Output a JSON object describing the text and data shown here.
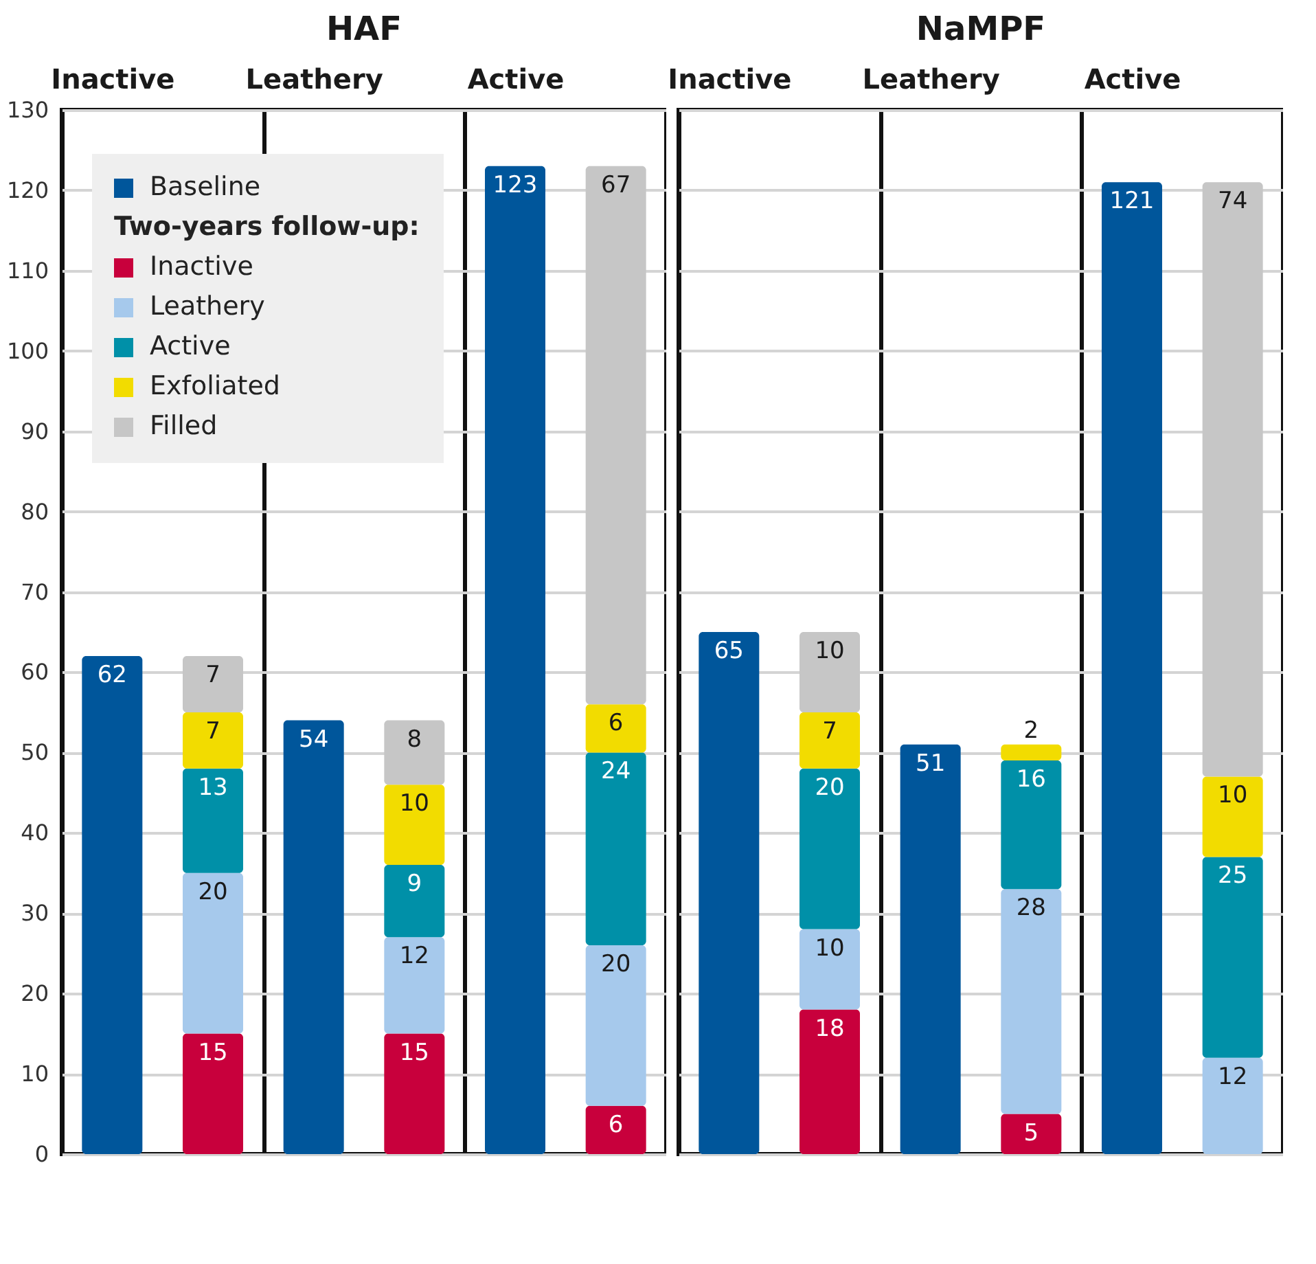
{
  "chart_data": [
    {
      "type": "bar",
      "title": "HAF",
      "categories": [
        "Inactive",
        null,
        "Leathery",
        null,
        "Active",
        null
      ],
      "stacked": true,
      "ylim": [
        0,
        130
      ],
      "yticks": [
        0,
        10,
        20,
        30,
        40,
        50,
        60,
        70,
        80,
        90,
        100,
        110,
        120,
        130
      ],
      "grid": true,
      "data_labels": true,
      "legend": "top left",
      "legend_title": "Two-years follow-up:",
      "series": [
        {
          "name": "Baseline",
          "color": "#00569b",
          "values": [
            62,
            null,
            54,
            null,
            123,
            null
          ]
        },
        {
          "name": "Inactive",
          "color": "#c8003c",
          "values": [
            null,
            15,
            null,
            15,
            null,
            6
          ]
        },
        {
          "name": "Leathery",
          "color": "#a6c9ec",
          "values": [
            null,
            20,
            null,
            12,
            null,
            20
          ]
        },
        {
          "name": "Active",
          "color": "#0090a8",
          "values": [
            null,
            13,
            null,
            9,
            null,
            24
          ]
        },
        {
          "name": "Exfoliated",
          "color": "#f2dc00",
          "values": [
            null,
            7,
            null,
            10,
            null,
            6
          ]
        },
        {
          "name": "Filled",
          "color": "#c6c6c6",
          "values": [
            null,
            7,
            null,
            8,
            null,
            67
          ]
        }
      ]
    },
    {
      "type": "bar",
      "title": "NaMPF",
      "categories": [
        "Inactive",
        null,
        "Leathery",
        null,
        "Active",
        null
      ],
      "stacked": true,
      "ylim": [
        0,
        130
      ],
      "yticks": [
        0,
        10,
        20,
        30,
        40,
        50,
        60,
        70,
        80,
        90,
        100,
        110,
        120,
        130
      ],
      "grid": true,
      "data_labels": true,
      "tick_labels": "x",
      "series": [
        {
          "color": "#00569b",
          "values": [
            65,
            null,
            51,
            null,
            121,
            null
          ]
        },
        {
          "color": "#c8003c",
          "values": [
            null,
            18,
            null,
            5,
            null,
            null
          ]
        },
        {
          "color": "#a6c9ec",
          "values": [
            null,
            10,
            null,
            28,
            null,
            12
          ]
        },
        {
          "color": "#0090a8",
          "values": [
            null,
            20,
            null,
            16,
            null,
            25
          ]
        },
        {
          "color": "#f2dc00",
          "values": [
            null,
            7,
            null,
            2,
            null,
            10
          ]
        },
        {
          "color": "#c6c6c6",
          "values": [
            null,
            10,
            null,
            null,
            null,
            74
          ]
        }
      ]
    }
  ]
}
